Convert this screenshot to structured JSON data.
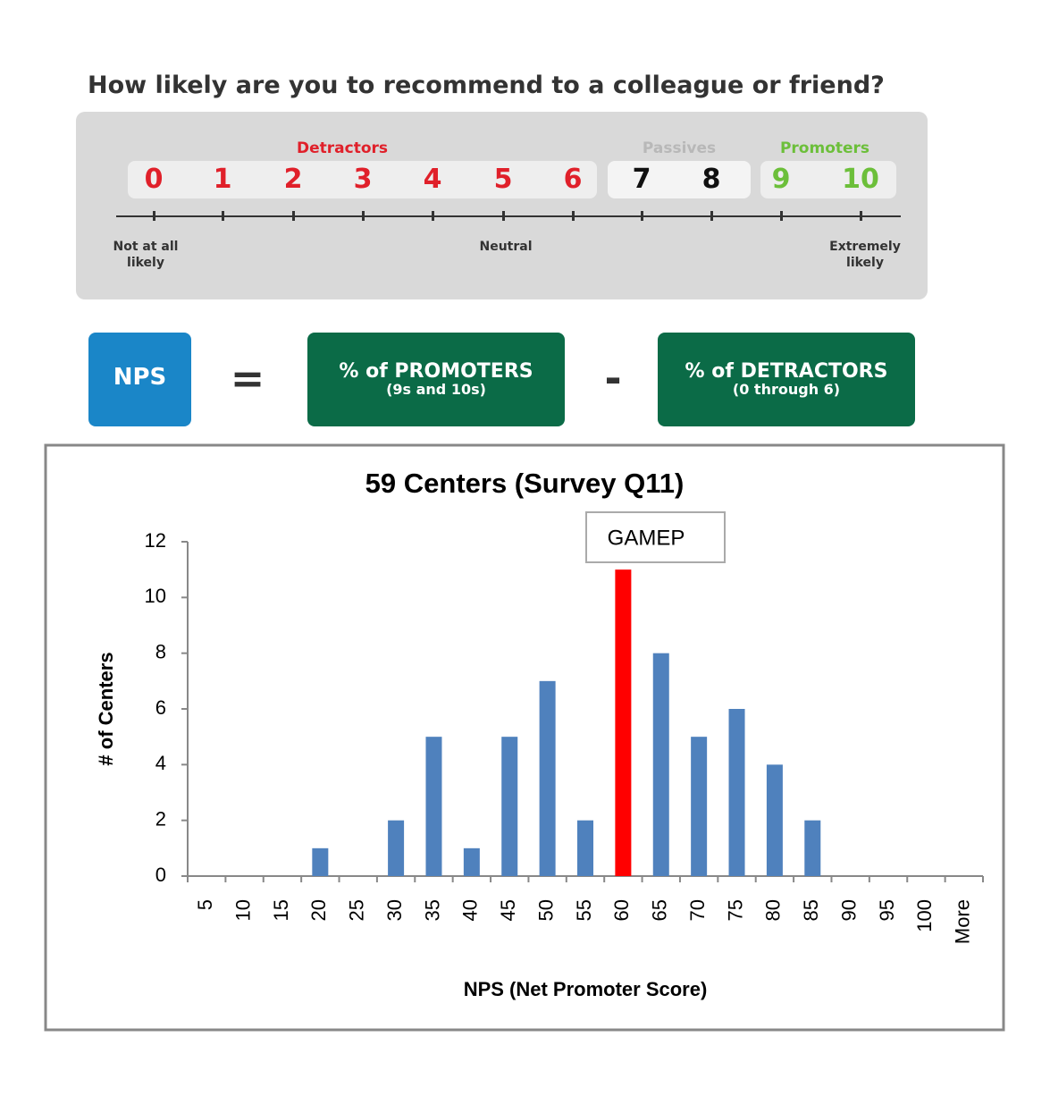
{
  "question": "How likely are you to recommend to a colleague or friend?",
  "scale": {
    "groups": [
      {
        "label": "Detractors",
        "numbers": [
          0,
          1,
          2,
          3,
          4,
          5,
          6
        ]
      },
      {
        "label": "Passives",
        "numbers": [
          7,
          8
        ]
      },
      {
        "label": "Promoters",
        "numbers": [
          9,
          10
        ]
      }
    ],
    "anchors": [
      "Not at all likely",
      "Neutral",
      "Extremely likely"
    ]
  },
  "formula": {
    "result": "NPS",
    "equals": "=",
    "left": {
      "title": "% of PROMOTERS",
      "subtitle": "(9s and 10s)"
    },
    "minus": "-",
    "right": {
      "title": "% of DETRACTORS",
      "subtitle": "(0 through 6)"
    }
  },
  "chart_data": {
    "type": "bar",
    "title": "59 Centers (Survey Q11)",
    "x_label": "NPS (Net Promoter Score)",
    "y_label": "# of Centers",
    "categories": [
      "5",
      "10",
      "15",
      "20",
      "25",
      "30",
      "35",
      "40",
      "45",
      "50",
      "55",
      "60",
      "65",
      "70",
      "75",
      "80",
      "85",
      "90",
      "95",
      "100",
      "More"
    ],
    "values": [
      0,
      0,
      0,
      1,
      0,
      2,
      5,
      1,
      5,
      7,
      2,
      11,
      8,
      5,
      6,
      4,
      2,
      0,
      0,
      0,
      0
    ],
    "colors": [
      "#4f81bd",
      "#4f81bd",
      "#4f81bd",
      "#4f81bd",
      "#4f81bd",
      "#4f81bd",
      "#4f81bd",
      "#4f81bd",
      "#4f81bd",
      "#4f81bd",
      "#4f81bd",
      "#ff0000",
      "#4f81bd",
      "#4f81bd",
      "#4f81bd",
      "#4f81bd",
      "#4f81bd",
      "#4f81bd",
      "#4f81bd",
      "#4f81bd",
      "#4f81bd"
    ],
    "annotation": "GAMEP",
    "ylim": [
      0,
      12
    ],
    "yticks": [
      0,
      2,
      4,
      6,
      8,
      10,
      12
    ]
  }
}
